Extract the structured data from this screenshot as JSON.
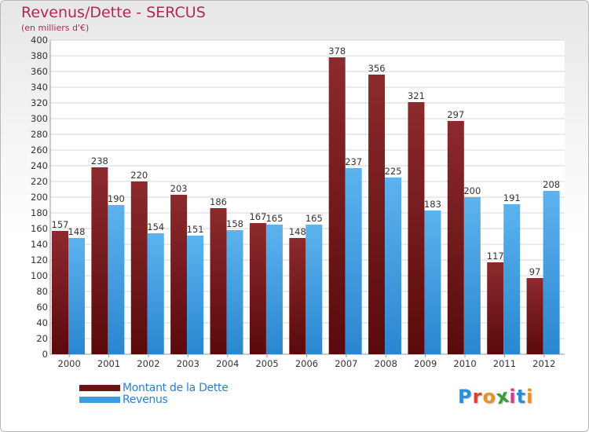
{
  "header": {
    "title": "Revenus/Dette - SERCUS",
    "subtitle": "(en milliers d'€)"
  },
  "chart_data": {
    "type": "bar",
    "title": "Revenus/Dette - SERCUS",
    "subtitle": "(en milliers d'€)",
    "categories": [
      "2000",
      "2001",
      "2002",
      "2003",
      "2004",
      "2005",
      "2006",
      "2007",
      "2008",
      "2009",
      "2010",
      "2011",
      "2012"
    ],
    "series": [
      {
        "name": "Montant de la Dette",
        "color": "#7a1a1d",
        "values": [
          157,
          238,
          220,
          203,
          186,
          167,
          148,
          378,
          356,
          321,
          297,
          117,
          97
        ]
      },
      {
        "name": "Revenus",
        "color": "#3d9be0",
        "values": [
          148,
          190,
          154,
          151,
          158,
          165,
          165,
          237,
          225,
          183,
          200,
          191,
          208
        ]
      }
    ],
    "ylim": [
      0,
      400
    ],
    "ytick_step": 20,
    "grid": true,
    "data_labels": true,
    "legend_position": "bottom-left"
  },
  "legend": {
    "items": [
      {
        "label": "Montant de la Dette",
        "color": "#6b1416"
      },
      {
        "label": "Revenus",
        "color": "#3d9be0"
      }
    ]
  },
  "logo": {
    "text": "Proxiti",
    "letter_colors": [
      "#2a8fd6",
      "#e2402f",
      "#e89222",
      "#3a9c3a",
      "#d93b8c",
      "#2a8fd6",
      "#e89222"
    ]
  }
}
